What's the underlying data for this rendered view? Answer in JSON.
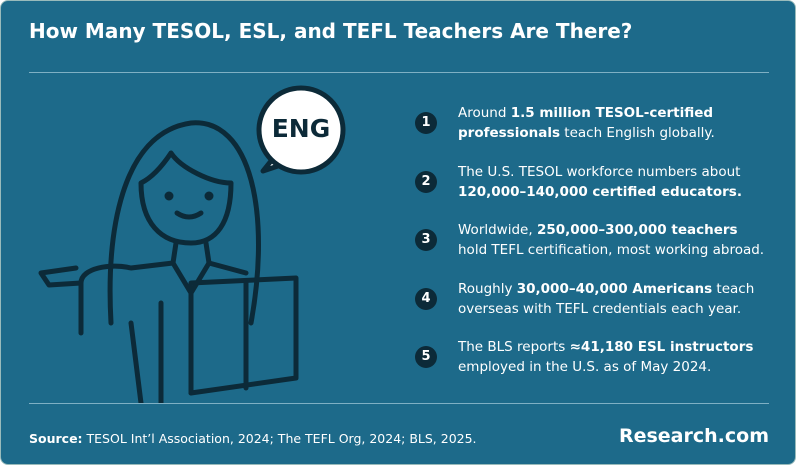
{
  "header": {
    "title": "How Many TESOL, ESL, and TEFL Teachers Are There?"
  },
  "illustration": {
    "bubble_text": "ENG"
  },
  "items": [
    {
      "number": "1",
      "parts": [
        {
          "text": "Around ",
          "bold": false
        },
        {
          "text": "1.5 million TESOL-certified professionals",
          "bold": true
        },
        {
          "text": " teach English globally.",
          "bold": false
        }
      ]
    },
    {
      "number": "2",
      "parts": [
        {
          "text": "The U.S. TESOL workforce numbers about ",
          "bold": false
        },
        {
          "text": "120,000–140,000 certified educators.",
          "bold": true
        }
      ]
    },
    {
      "number": "3",
      "parts": [
        {
          "text": "Worldwide, ",
          "bold": false
        },
        {
          "text": "250,000–300,000 teachers",
          "bold": true
        },
        {
          "text": " hold TEFL certification, most working abroad.",
          "bold": false
        }
      ]
    },
    {
      "number": "4",
      "parts": [
        {
          "text": "Roughly ",
          "bold": false
        },
        {
          "text": "30,000–40,000 Americans",
          "bold": true
        },
        {
          "text": " teach overseas with TEFL credentials each year.",
          "bold": false
        }
      ]
    },
    {
      "number": "5",
      "parts": [
        {
          "text": "The BLS reports ",
          "bold": false
        },
        {
          "text": "≈41,180 ESL instructors",
          "bold": true
        },
        {
          "text": " employed in the U.S. as of May 2024.",
          "bold": false
        }
      ]
    }
  ],
  "footer": {
    "source_label": "Source:",
    "source_text": " TESOL Int’l Association, 2024; The TEFL Org, 2024; BLS, 2025.",
    "logo": "Research.com"
  }
}
